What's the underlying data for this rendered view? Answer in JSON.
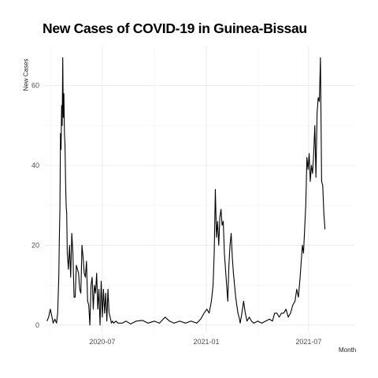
{
  "chart_data": {
    "type": "line",
    "title": "New Cases of COVID-19 in Guinea-Bissau",
    "xlabel": "Month",
    "ylabel": "New Cases",
    "x_ticks": [
      "2020-07",
      "2021-01",
      "2021-07"
    ],
    "y_ticks": [
      0,
      20,
      40,
      60
    ],
    "xlim": [
      "2020-03-20",
      "2021-09-20"
    ],
    "ylim": [
      -2,
      70
    ],
    "grid": true,
    "series_color": "#000000",
    "series": [
      {
        "points": [
          [
            "2020-03-25",
            1
          ],
          [
            "2020-03-28",
            2
          ],
          [
            "2020-03-31",
            4
          ],
          [
            "2020-04-03",
            2
          ],
          [
            "2020-04-05",
            0.5
          ],
          [
            "2020-04-08",
            1.5
          ],
          [
            "2020-04-11",
            0.5
          ],
          [
            "2020-04-13",
            3
          ],
          [
            "2020-04-15",
            12
          ],
          [
            "2020-04-16",
            22
          ],
          [
            "2020-04-17",
            29
          ],
          [
            "2020-04-18",
            48
          ],
          [
            "2020-04-19",
            44
          ],
          [
            "2020-04-20",
            55
          ],
          [
            "2020-04-21",
            50
          ],
          [
            "2020-04-22",
            67
          ],
          [
            "2020-04-23",
            52
          ],
          [
            "2020-04-24",
            58
          ],
          [
            "2020-04-25",
            48
          ],
          [
            "2020-04-26",
            45
          ],
          [
            "2020-04-27",
            36
          ],
          [
            "2020-04-28",
            30
          ],
          [
            "2020-04-29",
            28
          ],
          [
            "2020-04-30",
            18
          ],
          [
            "2020-05-02",
            14
          ],
          [
            "2020-05-04",
            20
          ],
          [
            "2020-05-06",
            12
          ],
          [
            "2020-05-08",
            23
          ],
          [
            "2020-05-10",
            18
          ],
          [
            "2020-05-12",
            7
          ],
          [
            "2020-05-14",
            7
          ],
          [
            "2020-05-16",
            15
          ],
          [
            "2020-05-18",
            14
          ],
          [
            "2020-05-20",
            13
          ],
          [
            "2020-05-22",
            9
          ],
          [
            "2020-05-24",
            8
          ],
          [
            "2020-05-26",
            20
          ],
          [
            "2020-05-28",
            17
          ],
          [
            "2020-05-30",
            13
          ],
          [
            "2020-06-01",
            12
          ],
          [
            "2020-06-03",
            16
          ],
          [
            "2020-06-05",
            6
          ],
          [
            "2020-06-07",
            5
          ],
          [
            "2020-06-09",
            0
          ],
          [
            "2020-06-11",
            10
          ],
          [
            "2020-06-13",
            12
          ],
          [
            "2020-06-15",
            4
          ],
          [
            "2020-06-17",
            10
          ],
          [
            "2020-06-19",
            8
          ],
          [
            "2020-06-21",
            13
          ],
          [
            "2020-06-23",
            4
          ],
          [
            "2020-06-25",
            9
          ],
          [
            "2020-06-27",
            0
          ],
          [
            "2020-06-29",
            11
          ],
          [
            "2020-07-01",
            2
          ],
          [
            "2020-07-03",
            9
          ],
          [
            "2020-07-05",
            3
          ],
          [
            "2020-07-07",
            8
          ],
          [
            "2020-07-09",
            1
          ],
          [
            "2020-07-11",
            9
          ],
          [
            "2020-07-13",
            3
          ],
          [
            "2020-07-15",
            2
          ],
          [
            "2020-07-17",
            0.5
          ],
          [
            "2020-07-19",
            1
          ],
          [
            "2020-07-21",
            0.5
          ],
          [
            "2020-07-25",
            1
          ],
          [
            "2020-07-29",
            0.5
          ],
          [
            "2020-08-05",
            0.5
          ],
          [
            "2020-08-12",
            1
          ],
          [
            "2020-08-20",
            0.3
          ],
          [
            "2020-08-30",
            1
          ],
          [
            "2020-09-10",
            1.2
          ],
          [
            "2020-09-20",
            0.5
          ],
          [
            "2020-10-01",
            1
          ],
          [
            "2020-10-10",
            0.5
          ],
          [
            "2020-10-20",
            2
          ],
          [
            "2020-10-28",
            1
          ],
          [
            "2020-11-05",
            0.5
          ],
          [
            "2020-11-15",
            1
          ],
          [
            "2020-11-25",
            0.5
          ],
          [
            "2020-12-05",
            1
          ],
          [
            "2020-12-15",
            0.5
          ],
          [
            "2020-12-22",
            1.5
          ],
          [
            "2020-12-28",
            3
          ],
          [
            "2021-01-02",
            4
          ],
          [
            "2021-01-06",
            3
          ],
          [
            "2021-01-10",
            6
          ],
          [
            "2021-01-13",
            10
          ],
          [
            "2021-01-15",
            18
          ],
          [
            "2021-01-17",
            34
          ],
          [
            "2021-01-19",
            22
          ],
          [
            "2021-01-21",
            26
          ],
          [
            "2021-01-23",
            20
          ],
          [
            "2021-01-25",
            27
          ],
          [
            "2021-01-27",
            29
          ],
          [
            "2021-01-29",
            25
          ],
          [
            "2021-01-31",
            26
          ],
          [
            "2021-02-02",
            18
          ],
          [
            "2021-02-04",
            14
          ],
          [
            "2021-02-06",
            10
          ],
          [
            "2021-02-08",
            6
          ],
          [
            "2021-02-10",
            15
          ],
          [
            "2021-02-12",
            20
          ],
          [
            "2021-02-14",
            23
          ],
          [
            "2021-02-16",
            17
          ],
          [
            "2021-02-18",
            13
          ],
          [
            "2021-02-20",
            10
          ],
          [
            "2021-02-22",
            7
          ],
          [
            "2021-02-24",
            5
          ],
          [
            "2021-02-26",
            3
          ],
          [
            "2021-02-28",
            2
          ],
          [
            "2021-03-02",
            0.5
          ],
          [
            "2021-03-05",
            3
          ],
          [
            "2021-03-08",
            6
          ],
          [
            "2021-03-11",
            3
          ],
          [
            "2021-03-14",
            1
          ],
          [
            "2021-03-18",
            2
          ],
          [
            "2021-03-22",
            1
          ],
          [
            "2021-03-26",
            0.5
          ],
          [
            "2021-04-02",
            1
          ],
          [
            "2021-04-09",
            0.5
          ],
          [
            "2021-04-16",
            1
          ],
          [
            "2021-04-23",
            1.5
          ],
          [
            "2021-04-28",
            1
          ],
          [
            "2021-05-02",
            3
          ],
          [
            "2021-05-06",
            3
          ],
          [
            "2021-05-10",
            2
          ],
          [
            "2021-05-14",
            3
          ],
          [
            "2021-05-18",
            3
          ],
          [
            "2021-05-22",
            4
          ],
          [
            "2021-05-26",
            2
          ],
          [
            "2021-05-30",
            3
          ],
          [
            "2021-06-03",
            5
          ],
          [
            "2021-06-07",
            6
          ],
          [
            "2021-06-10",
            9
          ],
          [
            "2021-06-13",
            7
          ],
          [
            "2021-06-16",
            12
          ],
          [
            "2021-06-18",
            16
          ],
          [
            "2021-06-20",
            20
          ],
          [
            "2021-06-22",
            18
          ],
          [
            "2021-06-24",
            24
          ],
          [
            "2021-06-26",
            30
          ],
          [
            "2021-06-28",
            42
          ],
          [
            "2021-06-30",
            39
          ],
          [
            "2021-07-02",
            43
          ],
          [
            "2021-07-04",
            36
          ],
          [
            "2021-07-06",
            40
          ],
          [
            "2021-07-08",
            38
          ],
          [
            "2021-07-10",
            43
          ],
          [
            "2021-07-12",
            50
          ],
          [
            "2021-07-14",
            37
          ],
          [
            "2021-07-16",
            53
          ],
          [
            "2021-07-18",
            57
          ],
          [
            "2021-07-20",
            56
          ],
          [
            "2021-07-22",
            67
          ],
          [
            "2021-07-24",
            36
          ],
          [
            "2021-07-26",
            35
          ],
          [
            "2021-07-28",
            28
          ],
          [
            "2021-07-30",
            24
          ]
        ]
      }
    ]
  }
}
